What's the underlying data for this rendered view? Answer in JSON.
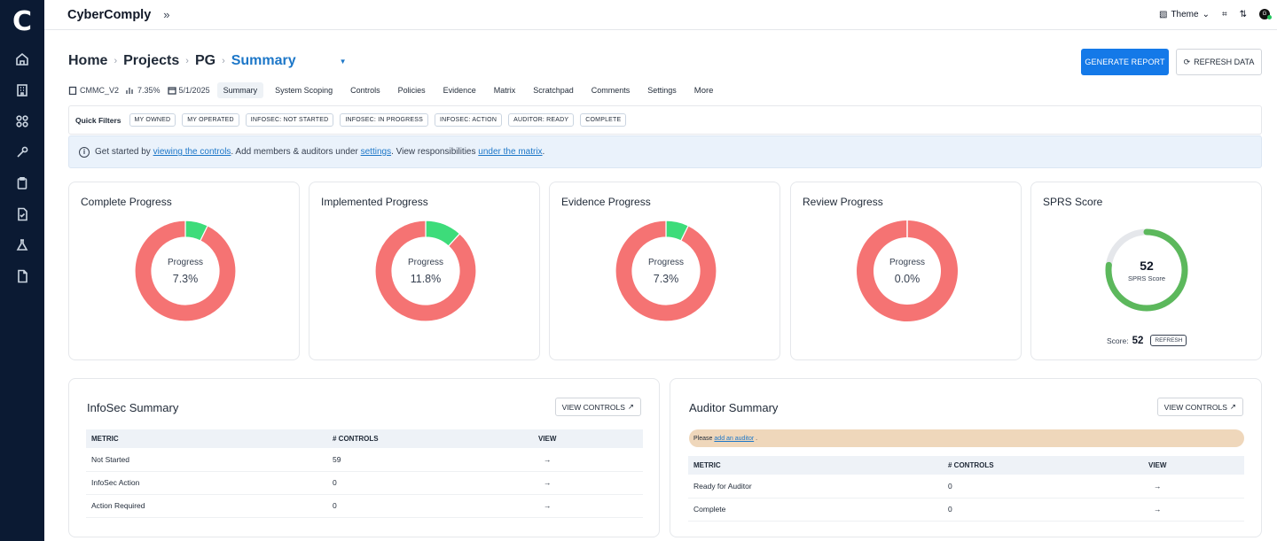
{
  "app": {
    "name": "CyberComply",
    "collapse_icon": "double-chevron-right-icon"
  },
  "sidebar": {
    "logo": "C",
    "icons": [
      "home-icon",
      "building-icon",
      "grid-icon",
      "wrench-icon",
      "clipboard-icon",
      "file-check-icon",
      "flask-icon",
      "file-icon"
    ]
  },
  "top_right": {
    "theme_label": "Theme",
    "avatar": "G"
  },
  "breadcrumb": {
    "home": "Home",
    "projects": "Projects",
    "project": "PG",
    "current": "Summary"
  },
  "actions": {
    "generate_report": "GENERATE REPORT",
    "refresh_data": "REFRESH DATA"
  },
  "meta": {
    "framework": "CMMC_V2",
    "percent": "7.35%",
    "date": "5/1/2025"
  },
  "tabs": [
    "Summary",
    "System Scoping",
    "Controls",
    "Policies",
    "Evidence",
    "Matrix",
    "Scratchpad",
    "Comments",
    "Settings",
    "More"
  ],
  "quick_filters": {
    "label": "Quick Filters",
    "chips": [
      "MY OWNED",
      "MY OPERATED",
      "INFOSEC: NOT STARTED",
      "INFOSEC: IN PROGRESS",
      "INFOSEC: ACTION",
      "AUDITOR: READY",
      "COMPLETE"
    ]
  },
  "banner": {
    "t1": "Get started by ",
    "link1": "viewing the controls",
    "t2": ". Add members & auditors under ",
    "link2": "settings",
    "t3": ". View responsibilities ",
    "link3": "under the matrix",
    "t4": "."
  },
  "progress_cards": [
    {
      "title": "Complete Progress",
      "center_label": "Progress",
      "value": "7.3%",
      "fraction": 0.073
    },
    {
      "title": "Implemented Progress",
      "center_label": "Progress",
      "value": "11.8%",
      "fraction": 0.118
    },
    {
      "title": "Evidence Progress",
      "center_label": "Progress",
      "value": "7.3%",
      "fraction": 0.073
    },
    {
      "title": "Review Progress",
      "center_label": "Progress",
      "value": "0.0%",
      "fraction": 0.0
    }
  ],
  "colors": {
    "done": "#3ddc7a",
    "remaining": "#f57373",
    "sprs_ring": "#5cb85c",
    "sprs_track": "#e5e7eb",
    "accent": "#1479e8"
  },
  "sprs": {
    "title": "SPRS Score",
    "value": "52",
    "label": "SPRS Score",
    "score_label": "Score:",
    "score": "52",
    "refresh": "REFRESH",
    "fill_fraction": 0.77
  },
  "infosec": {
    "title": "InfoSec Summary",
    "view_button": "VIEW CONTROLS",
    "headers": [
      "METRIC",
      "# CONTROLS",
      "VIEW"
    ],
    "rows": [
      {
        "metric": "Not Started",
        "controls": "59",
        "view": "→"
      },
      {
        "metric": "InfoSec Action",
        "controls": "0",
        "view": "→"
      },
      {
        "metric": "Action Required",
        "controls": "0",
        "view": "→"
      }
    ]
  },
  "auditor": {
    "title": "Auditor Summary",
    "view_button": "VIEW CONTROLS",
    "notice_pre": "Please",
    "notice_link": "add an auditor",
    "notice_post": ".",
    "headers": [
      "METRIC",
      "# CONTROLS",
      "VIEW"
    ],
    "rows": [
      {
        "metric": "Ready for Auditor",
        "controls": "0",
        "view": "→"
      },
      {
        "metric": "Complete",
        "controls": "0",
        "view": "→"
      }
    ]
  }
}
